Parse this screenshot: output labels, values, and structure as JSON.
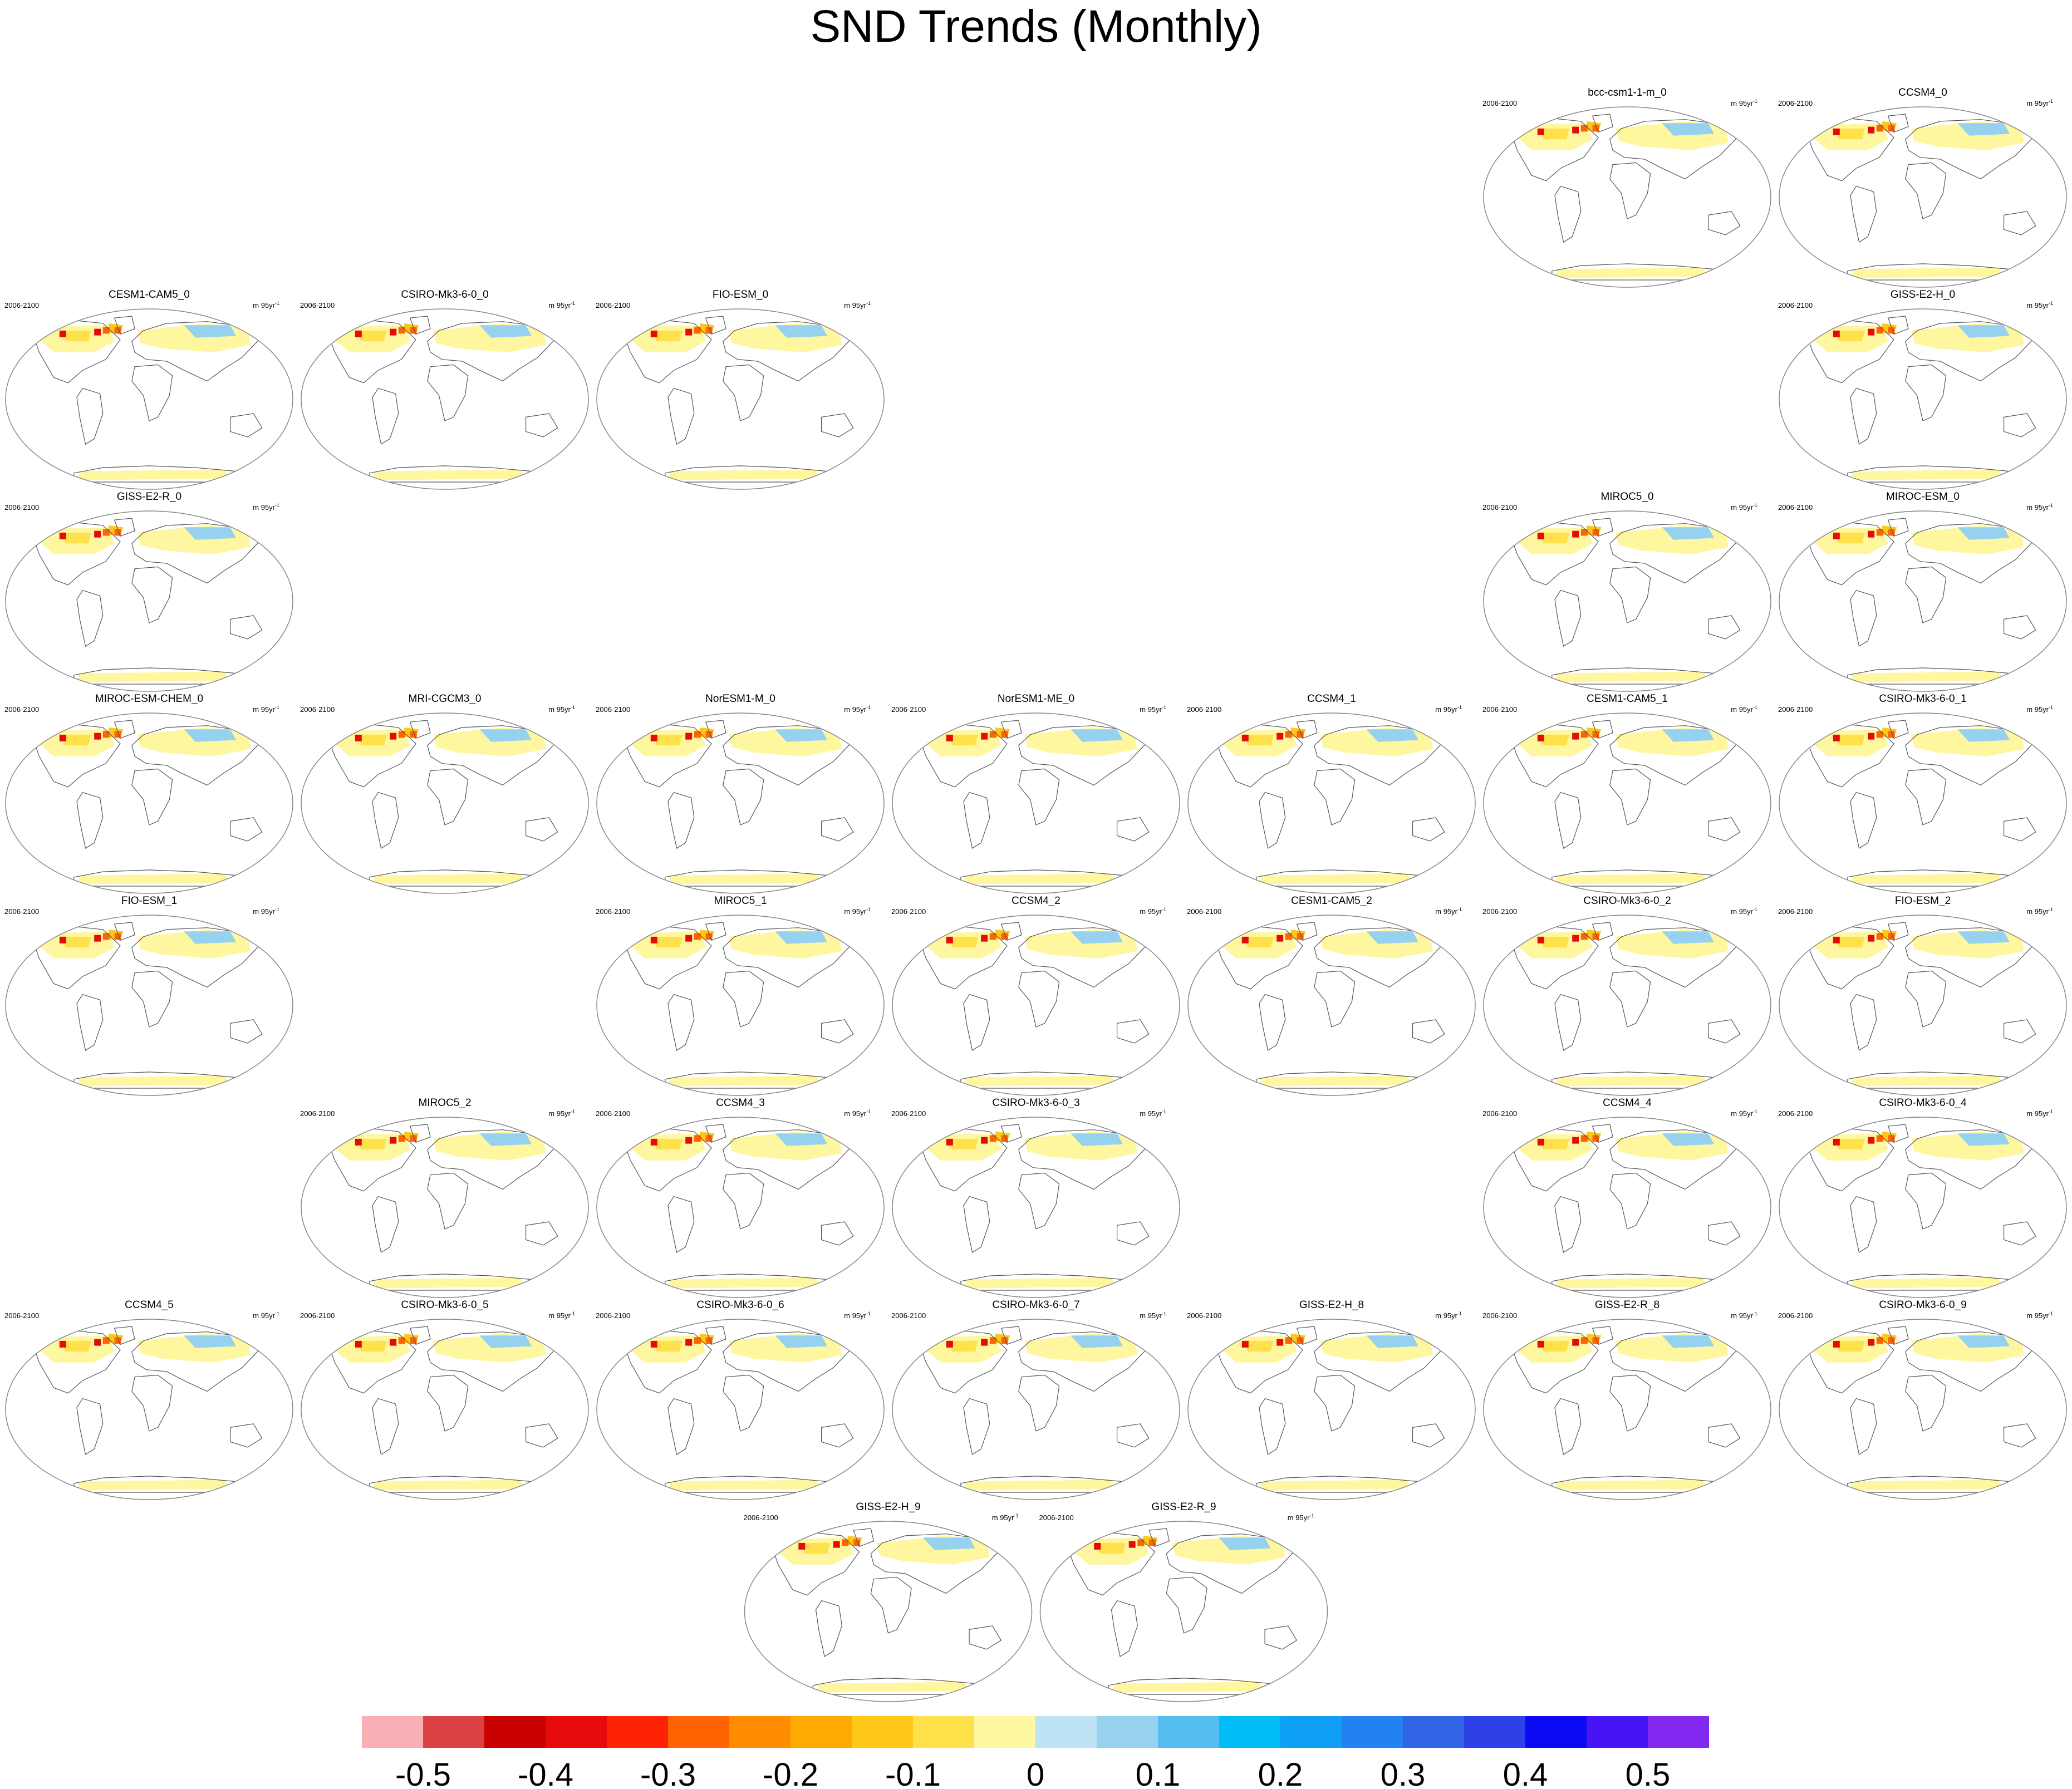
{
  "figure": {
    "title": "SND Trends (Monthly)"
  },
  "panel_labels": {
    "period": "2006-2100",
    "units_base": "m 95yr",
    "units_exp": "-1"
  },
  "chart_data": {
    "type": "heatmap",
    "title": "SND Trends (Monthly)",
    "period": "2006-2100",
    "units": "m 95yr^-1",
    "grid_rows": 8,
    "grid_cols": 7,
    "panels": [
      {
        "name": "bcc-csm1-1-m_0",
        "row": 0,
        "col": 5
      },
      {
        "name": "CCSM4_0",
        "row": 0,
        "col": 6
      },
      {
        "name": "CESM1-CAM5_0",
        "row": 1,
        "col": 0
      },
      {
        "name": "CSIRO-Mk3-6-0_0",
        "row": 1,
        "col": 1
      },
      {
        "name": "FIO-ESM_0",
        "row": 1,
        "col": 2
      },
      {
        "name": "GISS-E2-H_0",
        "row": 1,
        "col": 6
      },
      {
        "name": "GISS-E2-R_0",
        "row": 2,
        "col": 0
      },
      {
        "name": "MIROC5_0",
        "row": 2,
        "col": 5
      },
      {
        "name": "MIROC-ESM_0",
        "row": 2,
        "col": 6
      },
      {
        "name": "MIROC-ESM-CHEM_0",
        "row": 3,
        "col": 0
      },
      {
        "name": "MRI-CGCM3_0",
        "row": 3,
        "col": 1
      },
      {
        "name": "NorESM1-M_0",
        "row": 3,
        "col": 2
      },
      {
        "name": "NorESM1-ME_0",
        "row": 3,
        "col": 3
      },
      {
        "name": "CCSM4_1",
        "row": 3,
        "col": 4
      },
      {
        "name": "CESM1-CAM5_1",
        "row": 3,
        "col": 5
      },
      {
        "name": "CSIRO-Mk3-6-0_1",
        "row": 3,
        "col": 6
      },
      {
        "name": "FIO-ESM_1",
        "row": 4,
        "col": 0
      },
      {
        "name": "MIROC5_1",
        "row": 4,
        "col": 2
      },
      {
        "name": "CCSM4_2",
        "row": 4,
        "col": 3
      },
      {
        "name": "CESM1-CAM5_2",
        "row": 4,
        "col": 4
      },
      {
        "name": "CSIRO-Mk3-6-0_2",
        "row": 4,
        "col": 5
      },
      {
        "name": "FIO-ESM_2",
        "row": 4,
        "col": 6
      },
      {
        "name": "MIROC5_2",
        "row": 5,
        "col": 1
      },
      {
        "name": "CCSM4_3",
        "row": 5,
        "col": 2
      },
      {
        "name": "CSIRO-Mk3-6-0_3",
        "row": 5,
        "col": 3
      },
      {
        "name": "CCSM4_4",
        "row": 5,
        "col": 5
      },
      {
        "name": "CSIRO-Mk3-6-0_4",
        "row": 5,
        "col": 6
      },
      {
        "name": "CCSM4_5",
        "row": 6,
        "col": 0
      },
      {
        "name": "CSIRO-Mk3-6-0_5",
        "row": 6,
        "col": 1
      },
      {
        "name": "CSIRO-Mk3-6-0_6",
        "row": 6,
        "col": 2
      },
      {
        "name": "CSIRO-Mk3-6-0_7",
        "row": 6,
        "col": 3
      },
      {
        "name": "GISS-E2-H_8",
        "row": 6,
        "col": 4
      },
      {
        "name": "GISS-E2-R_8",
        "row": 6,
        "col": 5
      },
      {
        "name": "CSIRO-Mk3-6-0_9",
        "row": 6,
        "col": 6
      },
      {
        "name": "GISS-E2-H_9",
        "row": 7,
        "col": 2.5
      },
      {
        "name": "GISS-E2-R_9",
        "row": 7,
        "col": 3.5
      }
    ],
    "colorbar": {
      "colors": [
        "#f8b0b4",
        "#dc4244",
        "#c80000",
        "#e60a0a",
        "#ff2305",
        "#ff6400",
        "#ff8c00",
        "#ffaa00",
        "#ffc819",
        "#ffe24b",
        "#fff7a0",
        "#bde3f5",
        "#96d2f0",
        "#55bef0",
        "#00bef5",
        "#0fa0f5",
        "#2382f0",
        "#3264e6",
        "#2d41e6",
        "#0a0af5",
        "#4614f5",
        "#8228f0"
      ],
      "tick_labels": [
        "-0.5",
        "-0.4",
        "-0.3",
        "-0.2",
        "-0.1",
        "0",
        "0.1",
        "0.2",
        "0.3",
        "0.4",
        "0.5"
      ],
      "tick_after_box": [
        1,
        3,
        5,
        7,
        9,
        11,
        13,
        15,
        17,
        19,
        21
      ]
    }
  }
}
